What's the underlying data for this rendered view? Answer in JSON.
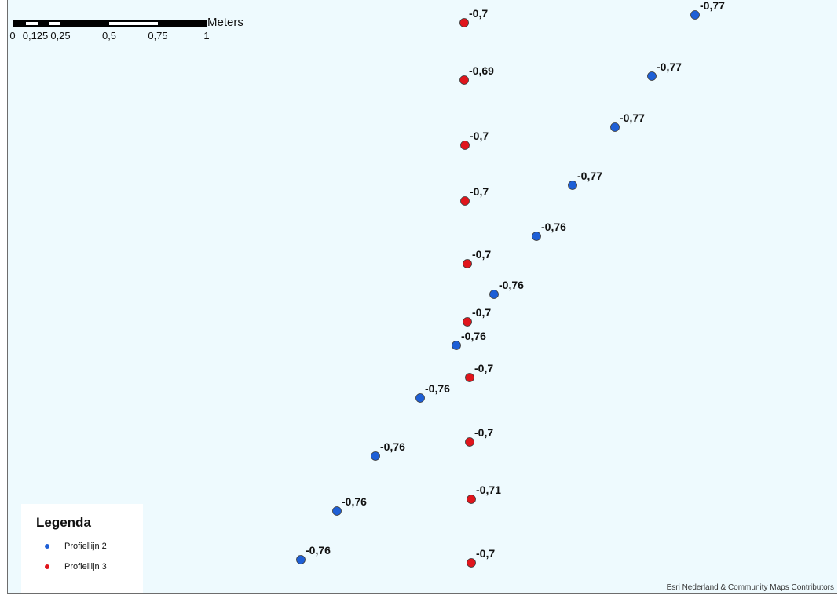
{
  "scale_bar": {
    "unit": "Meters",
    "ticks": [
      "0",
      "0,125",
      "0,25",
      "0,5",
      "0,75",
      "1"
    ]
  },
  "layers": {
    "profiellijn_2": {
      "name": "Profiellijn 2",
      "color": "#1e5fd6",
      "labels": [
        "-0,77",
        "-0,77",
        "-0,77",
        "-0,77",
        "-0,76",
        "-0,76",
        "-0,76",
        "-0,76",
        "-0,76",
        "-0,76",
        "-0,76"
      ]
    },
    "profiellijn_3": {
      "name": "Profiellijn 3",
      "color": "#e0151c",
      "labels": [
        "-0,7",
        "-0,69",
        "-0,7",
        "-0,7",
        "-0,7",
        "-0,7",
        "-0,7",
        "-0,7",
        "-0,71",
        "-0,7"
      ]
    }
  },
  "legend": {
    "title": "Legenda",
    "items": [
      {
        "label": "Profiellijn 2",
        "color": "#1e5fd6"
      },
      {
        "label": "Profiellijn 3",
        "color": "#e0151c"
      }
    ]
  },
  "attribution": "Esri Nederland & Community Maps Contributors"
}
